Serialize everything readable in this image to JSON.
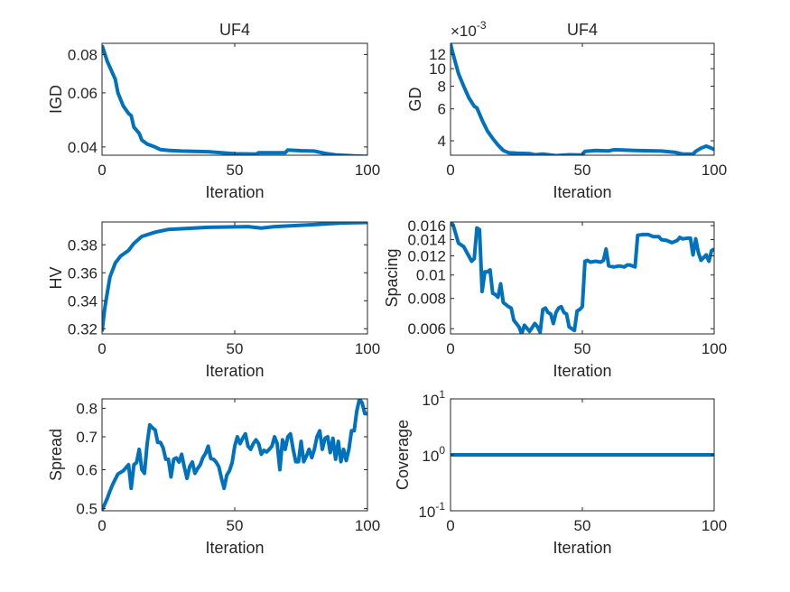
{
  "chart_data": [
    {
      "type": "line",
      "title": "UF4",
      "xlabel": "Iteration",
      "ylabel": "IGD",
      "yscale": "log",
      "xlim": [
        0,
        100
      ],
      "ylim": [
        0.0376,
        0.087
      ],
      "xticks": [
        0,
        50,
        100
      ],
      "yticks": [
        0.04,
        0.06,
        0.08
      ],
      "yticklabels": [
        "0.04",
        "0.06",
        "0.08"
      ],
      "x": [
        0,
        2,
        5,
        6,
        8,
        10,
        11,
        12,
        14,
        15,
        17,
        20,
        22,
        25,
        30,
        40,
        50,
        58,
        59,
        69,
        70,
        75,
        80,
        84,
        88,
        95,
        100
      ],
      "y": [
        0.0857,
        0.0759,
        0.0664,
        0.06,
        0.0544,
        0.0514,
        0.0506,
        0.0464,
        0.0443,
        0.0421,
        0.0409,
        0.04,
        0.0392,
        0.039,
        0.0388,
        0.0386,
        0.038,
        0.0379,
        0.0383,
        0.0383,
        0.0391,
        0.0389,
        0.0388,
        0.0381,
        0.0377,
        0.0374,
        0.0373
      ]
    },
    {
      "type": "line",
      "title": "UF4",
      "xlabel": "Iteration",
      "ylabel": "GD",
      "yscale": "log",
      "y_multiplier": {
        "base": "×10",
        "exponent": "-3"
      },
      "xlim": [
        0,
        100
      ],
      "ylim": [
        0.00333,
        0.0138
      ],
      "xticks": [
        0,
        50,
        100
      ],
      "yticks": [
        0.004,
        0.006,
        0.008,
        0.01,
        0.012
      ],
      "yticklabels": [
        "4",
        "6",
        "8",
        "10",
        "12"
      ],
      "x": [
        0,
        1,
        3,
        5,
        7,
        9,
        10,
        12,
        14,
        16,
        18,
        20,
        22,
        25,
        30,
        32,
        35,
        40,
        45,
        50,
        51,
        55,
        60,
        62,
        70,
        80,
        85,
        88,
        92,
        93,
        95,
        97,
        99,
        100
      ],
      "y": [
        0.0137,
        0.012,
        0.0094,
        0.008,
        0.0069,
        0.0062,
        0.00607,
        0.0052,
        0.00453,
        0.00412,
        0.00379,
        0.00354,
        0.00344,
        0.00342,
        0.0034,
        0.00335,
        0.00338,
        0.00331,
        0.00335,
        0.00334,
        0.0035,
        0.00354,
        0.00352,
        0.00357,
        0.00354,
        0.00351,
        0.00346,
        0.00338,
        0.00338,
        0.0035,
        0.00364,
        0.00374,
        0.00364,
        0.00357
      ]
    },
    {
      "type": "line",
      "title": "",
      "xlabel": "Iteration",
      "ylabel": "HV",
      "yscale": "linear",
      "xlim": [
        0,
        100
      ],
      "ylim": [
        0.3163,
        0.3963
      ],
      "xticks": [
        0,
        50,
        100
      ],
      "yticks": [
        0.32,
        0.34,
        0.36,
        0.38
      ],
      "yticklabels": [
        "0.32",
        "0.34",
        "0.36",
        "0.38"
      ],
      "x": [
        0,
        1,
        2,
        3,
        5,
        7,
        10,
        12,
        15,
        20,
        25,
        40,
        55,
        60,
        65,
        80,
        90,
        100
      ],
      "y": [
        0.318,
        0.334,
        0.346,
        0.357,
        0.367,
        0.372,
        0.376,
        0.381,
        0.386,
        0.389,
        0.391,
        0.3925,
        0.393,
        0.392,
        0.393,
        0.3944,
        0.3956,
        0.396
      ]
    },
    {
      "type": "line",
      "title": "",
      "xlabel": "Iteration",
      "ylabel": "Spacing",
      "yscale": "log",
      "xlim": [
        0,
        100
      ],
      "ylim": [
        0.00571,
        0.01656
      ],
      "xticks": [
        0,
        50,
        100
      ],
      "yticks": [
        0.006,
        0.008,
        0.01,
        0.012,
        0.014,
        0.016
      ],
      "yticklabels": [
        "0.006",
        "0.008",
        "0.01",
        "0.012",
        "0.014",
        "0.016"
      ],
      "x": [
        0,
        1,
        3,
        5,
        8,
        9,
        10,
        11,
        12,
        13,
        14,
        15,
        16,
        17,
        18,
        19,
        20,
        22,
        23,
        24,
        26,
        27,
        28,
        30,
        32,
        33,
        34,
        35,
        36,
        37,
        38,
        39,
        40,
        41,
        42,
        43,
        44,
        45,
        46,
        47,
        48,
        49,
        50,
        51,
        52,
        53,
        55,
        57,
        58,
        59,
        60,
        62,
        64,
        66,
        67,
        68,
        69,
        70,
        71,
        73,
        75,
        77,
        79,
        80,
        82,
        84,
        86,
        87,
        88,
        90,
        91,
        92,
        93,
        94,
        95,
        97,
        98,
        99,
        100
      ],
      "y": [
        0.01657,
        0.0161,
        0.01355,
        0.0131,
        0.0114,
        0.0117,
        0.01565,
        0.0154,
        0.00855,
        0.0103,
        0.0103,
        0.0105,
        0.0084,
        0.0083,
        0.0081,
        0.0092,
        0.0077,
        0.0074,
        0.0073,
        0.0065,
        0.0061,
        0.0057,
        0.0062,
        0.00585,
        0.0063,
        0.0061,
        0.0058,
        0.0072,
        0.0073,
        0.007,
        0.0069,
        0.0063,
        0.007,
        0.0073,
        0.0074,
        0.007,
        0.0069,
        0.0061,
        0.006,
        0.0059,
        0.0071,
        0.0072,
        0.0074,
        0.0114,
        0.0115,
        0.0113,
        0.0114,
        0.0113,
        0.0115,
        0.0128,
        0.0109,
        0.0108,
        0.0109,
        0.0108,
        0.011,
        0.011,
        0.0109,
        0.0108,
        0.0146,
        0.0147,
        0.0147,
        0.0144,
        0.0144,
        0.014,
        0.0139,
        0.0136,
        0.0139,
        0.0143,
        0.0141,
        0.0142,
        0.0142,
        0.0121,
        0.0141,
        0.0124,
        0.0115,
        0.0121,
        0.0114,
        0.0126,
        0.0128
      ]
    },
    {
      "type": "line",
      "title": "",
      "xlabel": "Iteration",
      "ylabel": "Spread",
      "yscale": "log",
      "xlim": [
        0,
        100
      ],
      "ylim": [
        0.495,
        0.836
      ],
      "xticks": [
        0,
        50,
        100
      ],
      "yticks": [
        0.5,
        0.6,
        0.7,
        0.8
      ],
      "yticklabels": [
        "0.5",
        "0.6",
        "0.7",
        "0.8"
      ],
      "x": [
        0,
        1,
        2,
        3,
        4,
        6,
        8,
        10,
        11,
        12,
        13,
        14,
        15,
        16,
        17,
        18,
        19,
        20,
        21,
        22,
        23,
        24,
        25,
        26,
        27,
        28,
        29,
        30,
        31,
        32,
        33,
        34,
        35,
        36,
        37,
        38,
        39,
        40,
        41,
        42,
        43,
        44,
        45,
        46,
        47,
        48,
        49,
        50,
        51,
        52,
        53,
        54,
        55,
        56,
        57,
        58,
        59,
        60,
        61,
        62,
        63,
        64,
        65,
        66,
        67,
        68,
        69,
        70,
        71,
        72,
        73,
        74,
        75,
        76,
        77,
        78,
        79,
        80,
        81,
        82,
        83,
        84,
        85,
        86,
        87,
        88,
        89,
        90,
        91,
        92,
        93,
        94,
        95,
        96,
        97,
        98,
        99,
        100
      ],
      "y": [
        0.497,
        0.51,
        0.525,
        0.543,
        0.56,
        0.588,
        0.597,
        0.614,
        0.55,
        0.614,
        0.62,
        0.66,
        0.6,
        0.59,
        0.678,
        0.74,
        0.73,
        0.723,
        0.682,
        0.682,
        0.665,
        0.63,
        0.63,
        0.58,
        0.63,
        0.634,
        0.622,
        0.645,
        0.608,
        0.576,
        0.608,
        0.622,
        0.59,
        0.603,
        0.614,
        0.635,
        0.648,
        0.67,
        0.632,
        0.63,
        0.622,
        0.608,
        0.576,
        0.55,
        0.585,
        0.597,
        0.62,
        0.67,
        0.7,
        0.678,
        0.695,
        0.71,
        0.67,
        0.66,
        0.678,
        0.69,
        0.678,
        0.645,
        0.657,
        0.652,
        0.66,
        0.67,
        0.7,
        0.678,
        0.6,
        0.69,
        0.66,
        0.7,
        0.71,
        0.66,
        0.623,
        0.623,
        0.685,
        0.623,
        0.64,
        0.66,
        0.635,
        0.66,
        0.7,
        0.72,
        0.66,
        0.695,
        0.7,
        0.65,
        0.695,
        0.63,
        0.685,
        0.623,
        0.66,
        0.626,
        0.66,
        0.72,
        0.72,
        0.79,
        0.836,
        0.82,
        0.78,
        0.78
      ]
    },
    {
      "type": "line",
      "title": "",
      "xlabel": "Iteration",
      "ylabel": "Coverage",
      "yscale": "log",
      "xlim": [
        0,
        100
      ],
      "ylim": [
        0.1,
        10
      ],
      "xticks": [
        0,
        50,
        100
      ],
      "yticks": [
        0.1,
        1,
        10
      ],
      "yticklabels": [
        {
          "base": "10",
          "exponent": "-1"
        },
        {
          "base": "10",
          "exponent": "0"
        },
        {
          "base": "10",
          "exponent": "1"
        }
      ],
      "x": [
        0,
        100
      ],
      "y": [
        1,
        1
      ]
    }
  ],
  "colors": {
    "line": "#0072BD",
    "axis": "#262626",
    "background": "#FFFFFF"
  }
}
